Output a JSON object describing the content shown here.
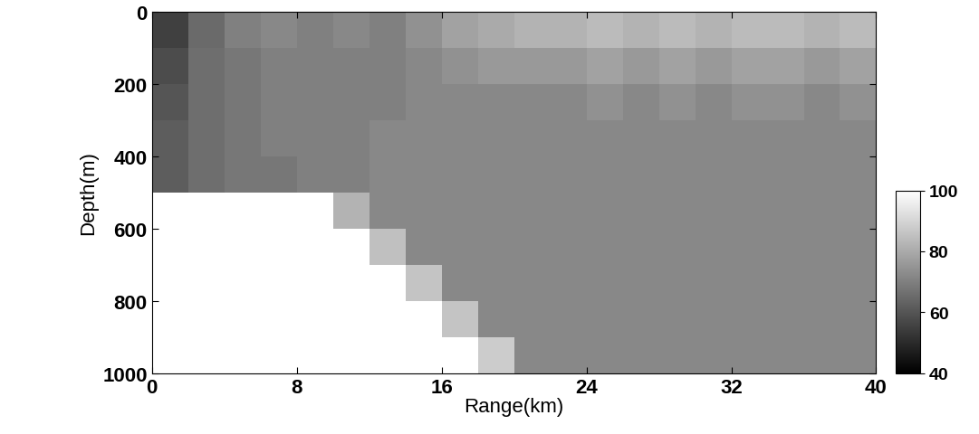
{
  "chart_data": {
    "type": "heatmap",
    "xlabel": "Range(km)",
    "ylabel": "Depth(m)",
    "x_edges": [
      0,
      2,
      4,
      6,
      8,
      10,
      12,
      14,
      16,
      18,
      20,
      22,
      24,
      26,
      28,
      30,
      32,
      34,
      36,
      38,
      40
    ],
    "y_edges": [
      0,
      100,
      200,
      300,
      400,
      500,
      600,
      700,
      800,
      900,
      1000
    ],
    "cells": [
      [
        55,
        65,
        70,
        72,
        70,
        72,
        70,
        74,
        78,
        80,
        82,
        82,
        84,
        82,
        84,
        82,
        84,
        84,
        82,
        84
      ],
      [
        58,
        66,
        68,
        70,
        70,
        70,
        70,
        72,
        74,
        76,
        76,
        76,
        78,
        76,
        78,
        76,
        78,
        78,
        76,
        78
      ],
      [
        60,
        66,
        68,
        70,
        70,
        70,
        70,
        72,
        72,
        72,
        72,
        72,
        74,
        72,
        74,
        72,
        74,
        74,
        72,
        74
      ],
      [
        62,
        66,
        68,
        70,
        70,
        70,
        72,
        72,
        72,
        72,
        72,
        72,
        72,
        72,
        72,
        72,
        72,
        72,
        72,
        72
      ],
      [
        62,
        66,
        68,
        68,
        70,
        70,
        72,
        72,
        72,
        72,
        72,
        72,
        72,
        72,
        72,
        72,
        72,
        72,
        72,
        72
      ],
      [
        100,
        100,
        100,
        100,
        100,
        82,
        72,
        72,
        72,
        72,
        72,
        72,
        72,
        72,
        72,
        72,
        72,
        72,
        72,
        72
      ],
      [
        100,
        100,
        100,
        100,
        100,
        100,
        85,
        72,
        72,
        72,
        72,
        72,
        72,
        72,
        72,
        72,
        72,
        72,
        72,
        72
      ],
      [
        100,
        100,
        100,
        100,
        100,
        100,
        100,
        86,
        72,
        72,
        72,
        72,
        72,
        72,
        72,
        72,
        72,
        72,
        72,
        72
      ],
      [
        100,
        100,
        100,
        100,
        100,
        100,
        100,
        100,
        86,
        72,
        72,
        72,
        72,
        72,
        72,
        72,
        72,
        72,
        72,
        72
      ],
      [
        100,
        100,
        100,
        100,
        100,
        100,
        100,
        100,
        100,
        88,
        72,
        72,
        72,
        72,
        72,
        72,
        72,
        72,
        72,
        72
      ]
    ],
    "color": "gray",
    "xlim": [
      0,
      40
    ],
    "xticks": [
      0,
      8,
      16,
      24,
      32,
      40
    ],
    "ylim": [
      1000,
      0
    ],
    "yticks": [
      0,
      200,
      400,
      600,
      800,
      1000
    ],
    "colorbar_lim": [
      40,
      100
    ],
    "colorbar_ticks": [
      40,
      60,
      80,
      100
    ]
  }
}
